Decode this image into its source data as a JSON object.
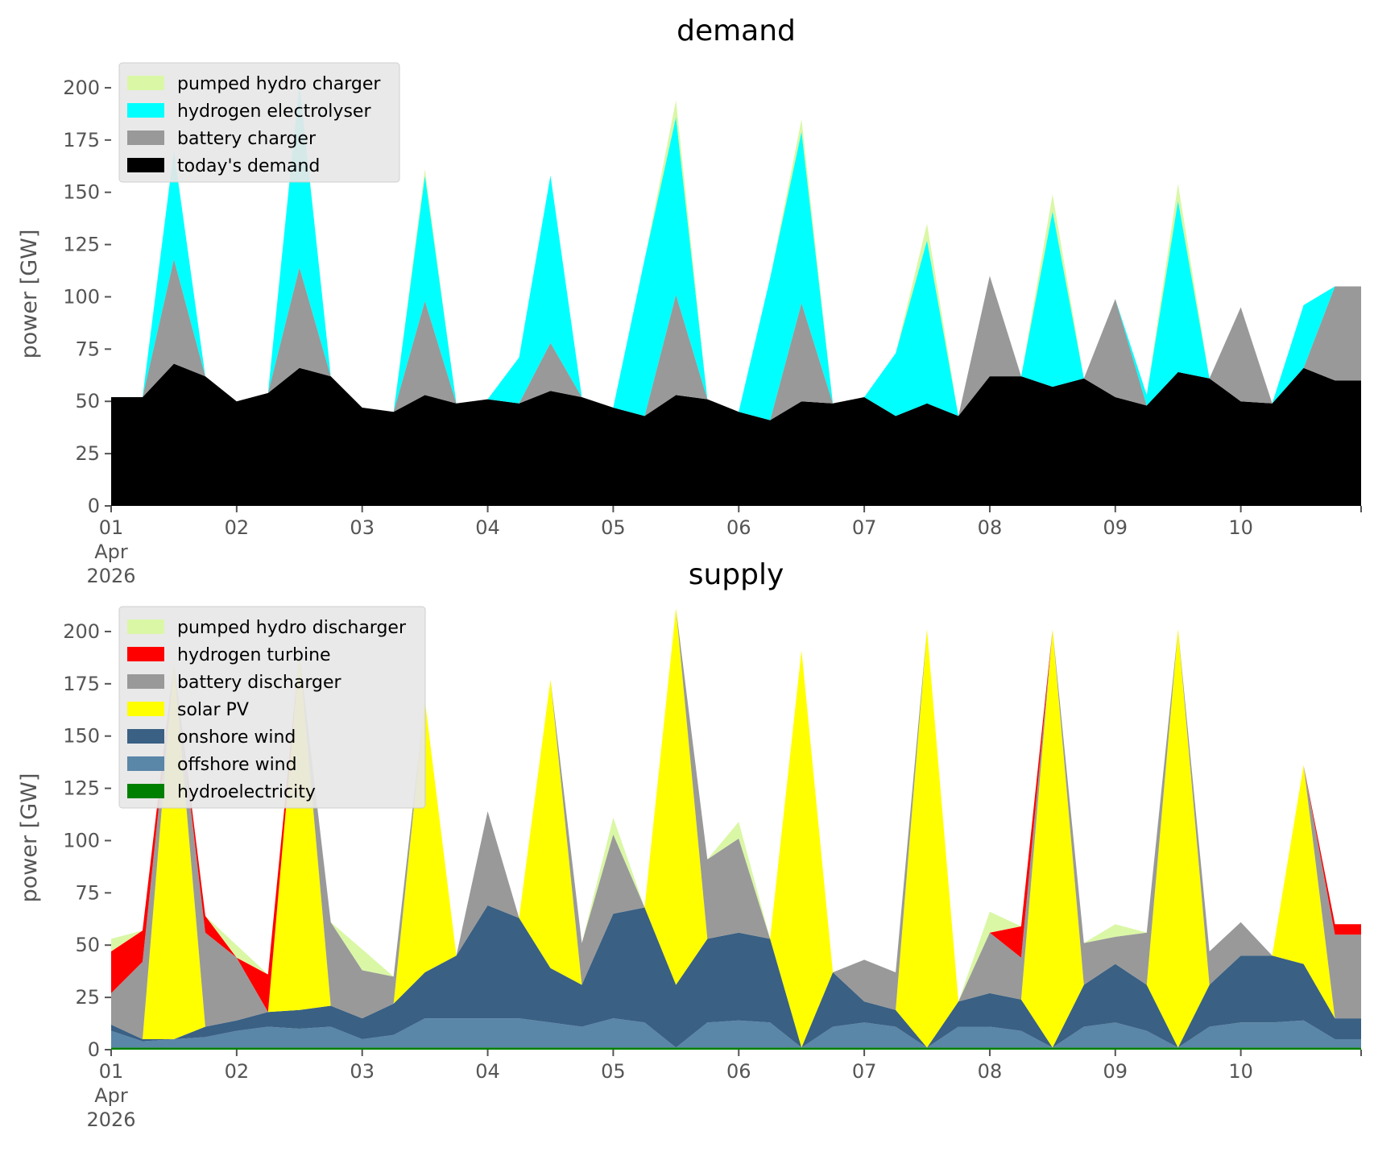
{
  "colors": {
    "pumped_hydro": "#DAF7A6",
    "hydrogen_electrolyser": "#00FFFF",
    "battery": "#999999",
    "demand": "#000000",
    "hydrogen_turbine": "#FF0000",
    "solar_pv": "#FFFF00",
    "onshore_wind": "#3A6083",
    "offshore_wind": "#5A86A8",
    "hydroelectricity": "#008000"
  },
  "chart_data": [
    {
      "type": "area",
      "stacked": true,
      "title": "demand",
      "ylabel": "power [GW]",
      "xlabel": "",
      "ylim": [
        0,
        215
      ],
      "xlim": [
        "2026-04-01 00:00",
        "2026-04-10 23:00"
      ],
      "yticks": [
        0,
        25,
        50,
        75,
        100,
        125,
        150,
        175,
        200
      ],
      "xtick_labels": [
        "01\nApr\n2026",
        "02",
        "03",
        "04",
        "05",
        "06",
        "07",
        "08",
        "09",
        "10"
      ],
      "legend_position": "top-left",
      "grid": false,
      "sampling": "6-hourly (00:00, 06:00, 12:00, 18:00), 2026-04-01 00:00 to 2026-04-10 18:00",
      "series": [
        {
          "name": "today's demand",
          "color_key": "demand",
          "values": [
            52,
            52,
            68,
            62,
            50,
            54,
            66,
            62,
            47,
            45,
            53,
            49,
            51,
            49,
            55,
            52,
            47,
            43,
            53,
            51,
            45,
            41,
            50,
            49,
            52,
            43,
            49,
            43,
            62,
            62,
            57,
            61,
            52,
            48,
            64,
            61,
            50,
            49,
            66,
            60
          ]
        },
        {
          "name": "battery charger",
          "color_key": "battery",
          "values": [
            0,
            0,
            50,
            0,
            0,
            0,
            48,
            0,
            0,
            0,
            45,
            0,
            0,
            0,
            23,
            0,
            0,
            0,
            48,
            0,
            0,
            0,
            47,
            0,
            0,
            0,
            0,
            0,
            48,
            0,
            0,
            0,
            47,
            0,
            0,
            0,
            45,
            0,
            0,
            45
          ]
        },
        {
          "name": "hydrogen electrolyser",
          "color_key": "hydrogen_electrolyser",
          "values": [
            0,
            0,
            52,
            0,
            0,
            0,
            88,
            0,
            0,
            0,
            60,
            0,
            0,
            22,
            80,
            0,
            0,
            75,
            85,
            0,
            0,
            68,
            82,
            0,
            0,
            30,
            78,
            0,
            0,
            0,
            84,
            0,
            0,
            5,
            82,
            0,
            0,
            0,
            30,
            0
          ]
        },
        {
          "name": "pumped hydro charger",
          "color_key": "pumped_hydro",
          "values": [
            0,
            0,
            0,
            0,
            0,
            0,
            0,
            0,
            0,
            0,
            3,
            0,
            0,
            0,
            0,
            0,
            0,
            0,
            8,
            0,
            0,
            0,
            6,
            0,
            0,
            0,
            8,
            0,
            0,
            0,
            8,
            0,
            0,
            0,
            8,
            0,
            0,
            0,
            0,
            0
          ]
        }
      ]
    },
    {
      "type": "area",
      "stacked": true,
      "title": "supply",
      "ylabel": "power [GW]",
      "xlabel": "",
      "ylim": [
        0,
        215
      ],
      "xlim": [
        "2026-04-01 00:00",
        "2026-04-10 23:00"
      ],
      "yticks": [
        0,
        25,
        50,
        75,
        100,
        125,
        150,
        175,
        200
      ],
      "xtick_labels": [
        "01\nApr\n2026",
        "02",
        "03",
        "04",
        "05",
        "06",
        "07",
        "08",
        "09",
        "10"
      ],
      "legend_position": "top-left",
      "grid": false,
      "sampling": "6-hourly (00:00, 06:00, 12:00, 18:00), 2026-04-01 00:00 to 2026-04-10 18:00",
      "series": [
        {
          "name": "hydroelectricity",
          "color_key": "hydroelectricity",
          "values": [
            1,
            1,
            1,
            1,
            1,
            1,
            1,
            1,
            1,
            1,
            1,
            1,
            1,
            1,
            1,
            1,
            1,
            1,
            1,
            1,
            1,
            1,
            1,
            1,
            1,
            1,
            1,
            1,
            1,
            1,
            1,
            1,
            1,
            1,
            1,
            1,
            1,
            1,
            1,
            1
          ]
        },
        {
          "name": "offshore wind",
          "color_key": "offshore_wind",
          "values": [
            8,
            3,
            4,
            5,
            8,
            10,
            9,
            10,
            4,
            6,
            14,
            14,
            14,
            14,
            12,
            10,
            14,
            12,
            0,
            12,
            13,
            12,
            0,
            10,
            12,
            10,
            0,
            10,
            10,
            8,
            0,
            10,
            12,
            8,
            0,
            10,
            12,
            12,
            13,
            4
          ]
        },
        {
          "name": "onshore wind",
          "color_key": "onshore_wind",
          "values": [
            3,
            1,
            0,
            5,
            5,
            7,
            9,
            10,
            10,
            15,
            22,
            30,
            54,
            48,
            26,
            20,
            50,
            55,
            30,
            40,
            42,
            40,
            0,
            26,
            10,
            8,
            0,
            12,
            16,
            15,
            0,
            20,
            28,
            22,
            0,
            20,
            32,
            32,
            27,
            10
          ]
        },
        {
          "name": "solar PV",
          "color_key": "solar_pv",
          "values": [
            0,
            0,
            180,
            0,
            0,
            0,
            170,
            0,
            0,
            0,
            130,
            0,
            0,
            0,
            138,
            0,
            0,
            0,
            180,
            0,
            0,
            0,
            190,
            0,
            0,
            0,
            200,
            0,
            0,
            0,
            200,
            0,
            0,
            0,
            200,
            0,
            0,
            0,
            95,
            0
          ]
        },
        {
          "name": "battery discharger",
          "color_key": "battery",
          "values": [
            15,
            37,
            0,
            45,
            30,
            0,
            0,
            40,
            23,
            13,
            0,
            0,
            45,
            0,
            0,
            20,
            38,
            0,
            0,
            38,
            45,
            0,
            0,
            0,
            20,
            18,
            0,
            0,
            29,
            20,
            0,
            20,
            13,
            25,
            0,
            16,
            16,
            0,
            0,
            40
          ]
        },
        {
          "name": "hydrogen turbine",
          "color_key": "hydrogen_turbine",
          "values": [
            20,
            15,
            0,
            8,
            0,
            18,
            0,
            0,
            0,
            0,
            0,
            0,
            0,
            0,
            0,
            0,
            0,
            0,
            0,
            0,
            0,
            0,
            0,
            0,
            0,
            0,
            0,
            0,
            0,
            15,
            0,
            0,
            0,
            0,
            0,
            0,
            0,
            0,
            0,
            5
          ]
        },
        {
          "name": "pumped hydro discharger",
          "color_key": "pumped_hydro",
          "values": [
            6,
            0,
            0,
            0,
            6,
            0,
            0,
            0,
            10,
            0,
            0,
            0,
            0,
            0,
            0,
            0,
            8,
            0,
            0,
            0,
            8,
            0,
            0,
            0,
            0,
            0,
            0,
            0,
            10,
            0,
            0,
            0,
            6,
            0,
            0,
            0,
            0,
            0,
            0,
            0
          ]
        }
      ]
    }
  ]
}
